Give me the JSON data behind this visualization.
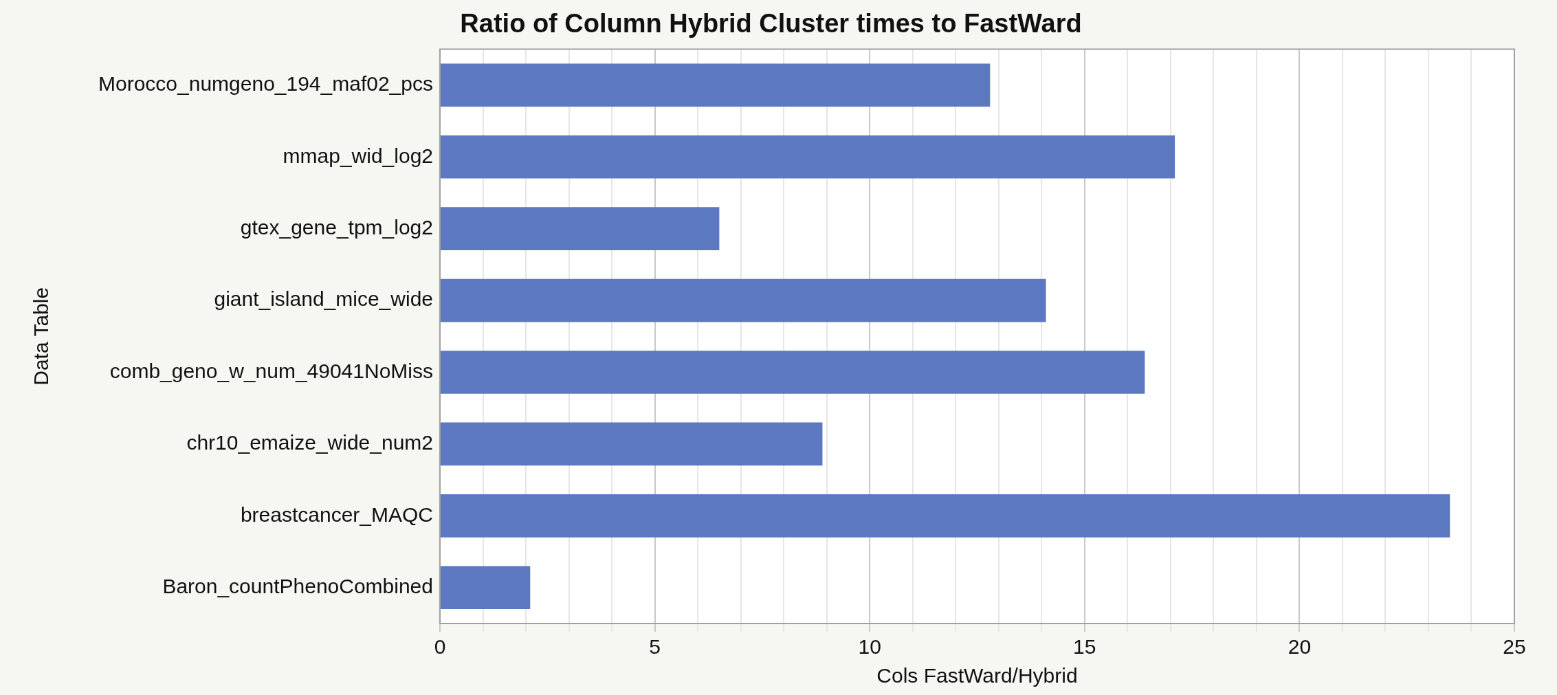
{
  "chart_data": {
    "type": "bar",
    "orientation": "horizontal",
    "title": "Ratio of Column Hybrid Cluster times to FastWard",
    "xlabel": "Cols FastWard/Hybrid",
    "ylabel": "Data Table",
    "categories": [
      "Morocco_numgeno_194_maf02_pcs",
      "mmap_wid_log2",
      "gtex_gene_tpm_log2",
      "giant_island_mice_wide",
      "comb_geno_w_num_49041NoMiss",
      "chr10_emaize_wide_num2",
      "breastcancer_MAQC",
      "Baron_countPhenoCombined"
    ],
    "values": [
      12.8,
      17.1,
      6.5,
      14.1,
      16.4,
      8.9,
      23.5,
      2.1
    ],
    "color": "#5b78c0",
    "xlim": [
      0,
      25
    ],
    "xticks": [
      0,
      {
        "value": 1,
        "label": null
      },
      {
        "value": 2,
        "label": null
      },
      {
        "value": 3,
        "label": null
      },
      {
        "value": 4,
        "label": null
      },
      5,
      {
        "value": 6,
        "label": null
      },
      {
        "value": 7,
        "label": null
      },
      {
        "value": 8,
        "label": null
      },
      {
        "value": 9,
        "label": null
      },
      10,
      {
        "value": 11,
        "label": null
      },
      {
        "value": 12,
        "label": null
      },
      {
        "value": 13,
        "label": null
      },
      {
        "value": 14,
        "label": null
      },
      15,
      {
        "value": 16,
        "label": null
      },
      {
        "value": 17,
        "label": null
      },
      {
        "value": 18,
        "label": null
      },
      {
        "value": 19,
        "label": null
      },
      20,
      {
        "value": 21,
        "label": null
      },
      {
        "value": 22,
        "label": null
      },
      {
        "value": 23,
        "label": null
      },
      {
        "value": 24,
        "label": null
      },
      25
    ],
    "grid": "x",
    "legend": false
  }
}
